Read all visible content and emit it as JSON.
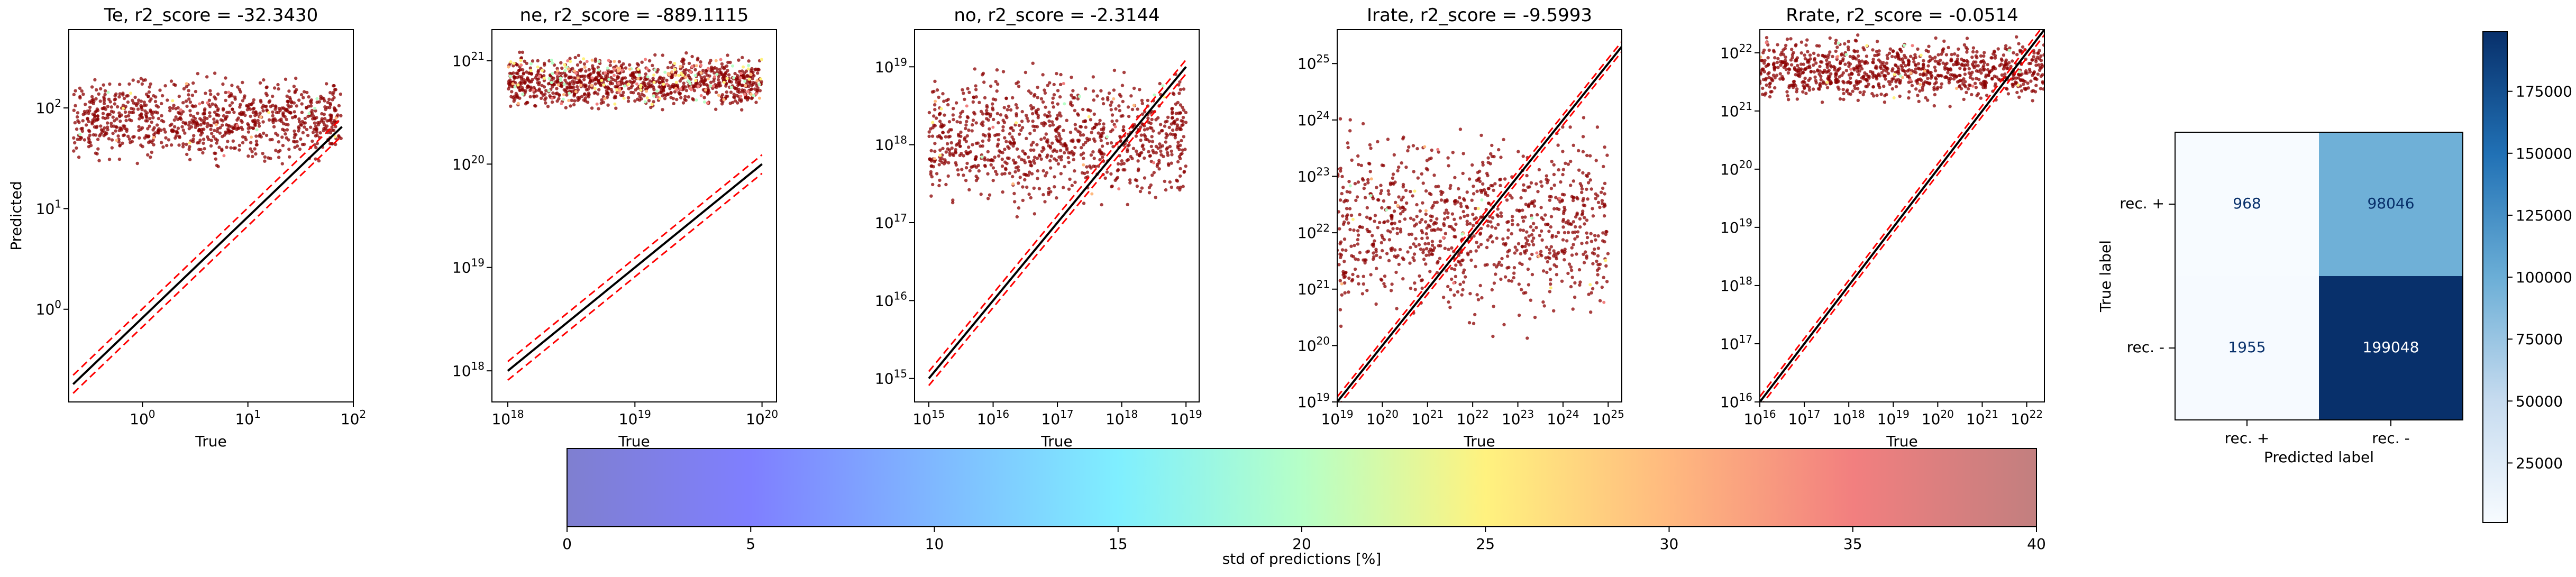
{
  "chart_data": [
    {
      "type": "scatter",
      "id": "te",
      "title": "Te, r2_score = -32.3430",
      "xlabel": "True",
      "ylabel": "Predicted",
      "xscale": "log",
      "yscale": "log",
      "xlim": [
        0.2,
        100
      ],
      "ylim": [
        0.12,
        600
      ],
      "xticks": [
        {
          "v": 1,
          "b": "10",
          "e": "0"
        },
        {
          "v": 10,
          "b": "10",
          "e": "1"
        },
        {
          "v": 100,
          "b": "10",
          "e": "2"
        }
      ],
      "yticks": [
        {
          "v": 1,
          "b": "10",
          "e": "0"
        },
        {
          "v": 10,
          "b": "10",
          "e": "1"
        },
        {
          "v": 100,
          "b": "10",
          "e": "2"
        }
      ],
      "identity_line": [
        [
          0.22,
          0.18
        ],
        [
          78,
          65
        ]
      ],
      "error_band": 0.3,
      "cloud": {
        "x": [
          0.22,
          78
        ],
        "y": [
          22,
          260
        ]
      }
    },
    {
      "type": "scatter",
      "id": "ne",
      "title": "ne, r2_score = -889.1115",
      "xlabel": "True",
      "ylabel": "",
      "xscale": "log",
      "yscale": "log",
      "xlim": [
        7.5e+17,
        1.3e+20
      ],
      "ylim": [
        5e+17,
        2e+21
      ],
      "xticks": [
        {
          "v": 1e+18,
          "b": "10",
          "e": "18"
        },
        {
          "v": 1e+19,
          "b": "10",
          "e": "19"
        },
        {
          "v": 1e+20,
          "b": "10",
          "e": "20"
        }
      ],
      "yticks": [
        {
          "v": 1e+18,
          "b": "10",
          "e": "18"
        },
        {
          "v": 1e+19,
          "b": "10",
          "e": "19"
        },
        {
          "v": 1e+20,
          "b": "10",
          "e": "20"
        },
        {
          "v": 1e+21,
          "b": "10",
          "e": "21"
        }
      ],
      "identity_line": [
        [
          1e+18,
          1e+18
        ],
        [
          1e+20,
          1e+20
        ]
      ],
      "error_band": 0.3,
      "cloud": {
        "x": [
          1e+18,
          1e+20
        ],
        "y": [
          3e+20,
          1.3e+21
        ]
      }
    },
    {
      "type": "scatter",
      "id": "no",
      "title": "no, r2_score = -2.3144",
      "xlabel": "True",
      "ylabel": "",
      "xscale": "log",
      "yscale": "log",
      "xlim": [
        600000000000000.0,
        1.6e+19
      ],
      "ylim": [
        500000000000000.0,
        3e+19
      ],
      "xticks": [
        {
          "v": 1000000000000000.0,
          "b": "10",
          "e": "15"
        },
        {
          "v": 1e+16,
          "b": "10",
          "e": "16"
        },
        {
          "v": 1e+17,
          "b": "10",
          "e": "17"
        },
        {
          "v": 1e+18,
          "b": "10",
          "e": "18"
        },
        {
          "v": 1e+19,
          "b": "10",
          "e": "19"
        }
      ],
      "yticks": [
        {
          "v": 1000000000000000.0,
          "b": "10",
          "e": "15"
        },
        {
          "v": 1e+16,
          "b": "10",
          "e": "16"
        },
        {
          "v": 1e+17,
          "b": "10",
          "e": "17"
        },
        {
          "v": 1e+18,
          "b": "10",
          "e": "18"
        },
        {
          "v": 1e+19,
          "b": "10",
          "e": "19"
        }
      ],
      "identity_line": [
        [
          1000000000000000.0,
          1000000000000000.0
        ],
        [
          1e+19,
          1e+19
        ]
      ],
      "error_band": 0.3,
      "cloud": {
        "x": [
          1000000000000000.0,
          1e+19
        ],
        "y": [
          1e+17,
          1.5e+19
        ]
      }
    },
    {
      "type": "scatter",
      "id": "irate",
      "title": "Irate, r2_score = -9.5993",
      "xlabel": "True",
      "ylabel": "",
      "xscale": "log",
      "yscale": "log",
      "xlim": [
        1e+19,
        2e+25
      ],
      "ylim": [
        1e+19,
        4e+25
      ],
      "xticks": [
        {
          "v": 1e+19,
          "b": "10",
          "e": "19"
        },
        {
          "v": 1e+20,
          "b": "10",
          "e": "20"
        },
        {
          "v": 1e+21,
          "b": "10",
          "e": "21"
        },
        {
          "v": 1e+22,
          "b": "10",
          "e": "22"
        },
        {
          "v": 1e+23,
          "b": "10",
          "e": "23"
        },
        {
          "v": 1e+24,
          "b": "10",
          "e": "24"
        },
        {
          "v": 1e+25,
          "b": "10",
          "e": "25"
        }
      ],
      "yticks": [
        {
          "v": 1e+19,
          "b": "10",
          "e": "19"
        },
        {
          "v": 1e+20,
          "b": "10",
          "e": "20"
        },
        {
          "v": 1e+21,
          "b": "10",
          "e": "21"
        },
        {
          "v": 1e+22,
          "b": "10",
          "e": "22"
        },
        {
          "v": 1e+23,
          "b": "10",
          "e": "23"
        },
        {
          "v": 1e+24,
          "b": "10",
          "e": "24"
        },
        {
          "v": 1e+25,
          "b": "10",
          "e": "25"
        }
      ],
      "identity_line": [
        [
          1e+19,
          1e+19
        ],
        [
          2e+25,
          2e+25
        ]
      ],
      "error_band": 0.3,
      "cloud": {
        "x": [
          1e+19,
          1e+25
        ],
        "y": [
          1e+20,
          2e+24
        ]
      }
    },
    {
      "type": "scatter",
      "id": "rrate",
      "title": "Rrate, r2_score = -0.0514",
      "xlabel": "True",
      "ylabel": "",
      "xscale": "log",
      "yscale": "log",
      "xlim": [
        1e+16,
        2.5e+22
      ],
      "ylim": [
        1e+16,
        2.5e+22
      ],
      "xticks": [
        {
          "v": 1e+16,
          "b": "10",
          "e": "16"
        },
        {
          "v": 1e+17,
          "b": "10",
          "e": "17"
        },
        {
          "v": 1e+18,
          "b": "10",
          "e": "18"
        },
        {
          "v": 1e+19,
          "b": "10",
          "e": "19"
        },
        {
          "v": 1e+20,
          "b": "10",
          "e": "20"
        },
        {
          "v": 1e+21,
          "b": "10",
          "e": "21"
        },
        {
          "v": 1e+22,
          "b": "10",
          "e": "22"
        }
      ],
      "yticks": [
        {
          "v": 1e+16,
          "b": "10",
          "e": "16"
        },
        {
          "v": 1e+17,
          "b": "10",
          "e": "17"
        },
        {
          "v": 1e+18,
          "b": "10",
          "e": "18"
        },
        {
          "v": 1e+19,
          "b": "10",
          "e": "19"
        },
        {
          "v": 1e+20,
          "b": "10",
          "e": "20"
        },
        {
          "v": 1e+21,
          "b": "10",
          "e": "21"
        },
        {
          "v": 1e+22,
          "b": "10",
          "e": "22"
        }
      ],
      "identity_line": [
        [
          1e+16,
          1e+16
        ],
        [
          2.5e+22,
          2.5e+22
        ]
      ],
      "error_band": 0.3,
      "cloud": {
        "x": [
          1e+16,
          2.5e+22
        ],
        "y": [
          1e+21,
          2.5e+22
        ]
      }
    },
    {
      "type": "heatmap",
      "id": "confusion",
      "title": "",
      "xlabel": "Predicted label",
      "ylabel": "True label",
      "x_categories": [
        "rec. +",
        "rec. -"
      ],
      "y_categories": [
        "rec. +",
        "rec. -"
      ],
      "values": [
        [
          968,
          98046
        ],
        [
          1955,
          199048
        ]
      ],
      "colormap": "Blues",
      "vmin": 968,
      "vmax": 199048,
      "colorbar_ticks": [
        "25000",
        "50000",
        "75000",
        "100000",
        "125000",
        "150000",
        "175000"
      ]
    },
    {
      "type": "colorbar",
      "id": "std",
      "label": "std of predictions [%]",
      "range": [
        0,
        40
      ],
      "ticks": [
        "0",
        "5",
        "10",
        "15",
        "20",
        "25",
        "30",
        "35",
        "40"
      ],
      "colormap": "jet"
    }
  ],
  "colors": {
    "points": "#8b0000",
    "identity": "#000000",
    "band": "#ff0000",
    "text": "#000000"
  }
}
